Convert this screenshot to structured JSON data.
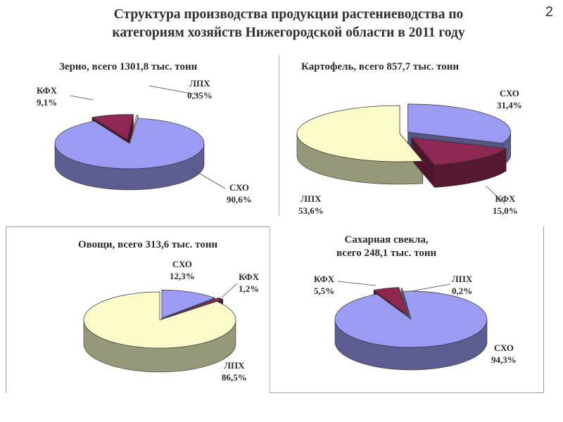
{
  "slide": {
    "title_line1": "Структура производства продукции растениеводства по",
    "title_line2": "категориям хозяйств Нижегородской области в 2011 году",
    "page_number": "2"
  },
  "colors": {
    "СХО": "#9b9bf3",
    "КФХ": "#8e2752",
    "ЛПХ": "#fbfbc9"
  },
  "chart_data": [
    {
      "type": "pie",
      "title": "Зерно, всего 1301,8 тыс. тонн",
      "categories": [
        "СХО",
        "КФХ",
        "ЛПХ"
      ],
      "values": [
        90.6,
        9.1,
        0.35
      ],
      "value_labels": [
        "90,6%",
        "9,1%",
        "0,35%"
      ]
    },
    {
      "type": "pie",
      "title": "Картофель, всего 857,7 тыс. тонн",
      "categories": [
        "СХО",
        "КФХ",
        "ЛПХ"
      ],
      "values": [
        31.4,
        15.0,
        53.6
      ],
      "value_labels": [
        "31,4%",
        "15,0%",
        "53,6%"
      ]
    },
    {
      "type": "pie",
      "title": "Овощи, всего 313,6 тыс. тонн",
      "categories": [
        "СХО",
        "КФХ",
        "ЛПХ"
      ],
      "values": [
        12.3,
        1.2,
        86.5
      ],
      "value_labels": [
        "12,3%",
        "1,2%",
        "86,5%"
      ]
    },
    {
      "type": "pie",
      "title_line1": "Сахарная свекла,",
      "title_line2": "всего 248,1 тыс. тонн",
      "categories": [
        "СХО",
        "КФХ",
        "ЛПХ"
      ],
      "values": [
        94.3,
        5.5,
        0.2
      ],
      "value_labels": [
        "94,3%",
        "5,5%",
        "0,2%"
      ]
    }
  ]
}
